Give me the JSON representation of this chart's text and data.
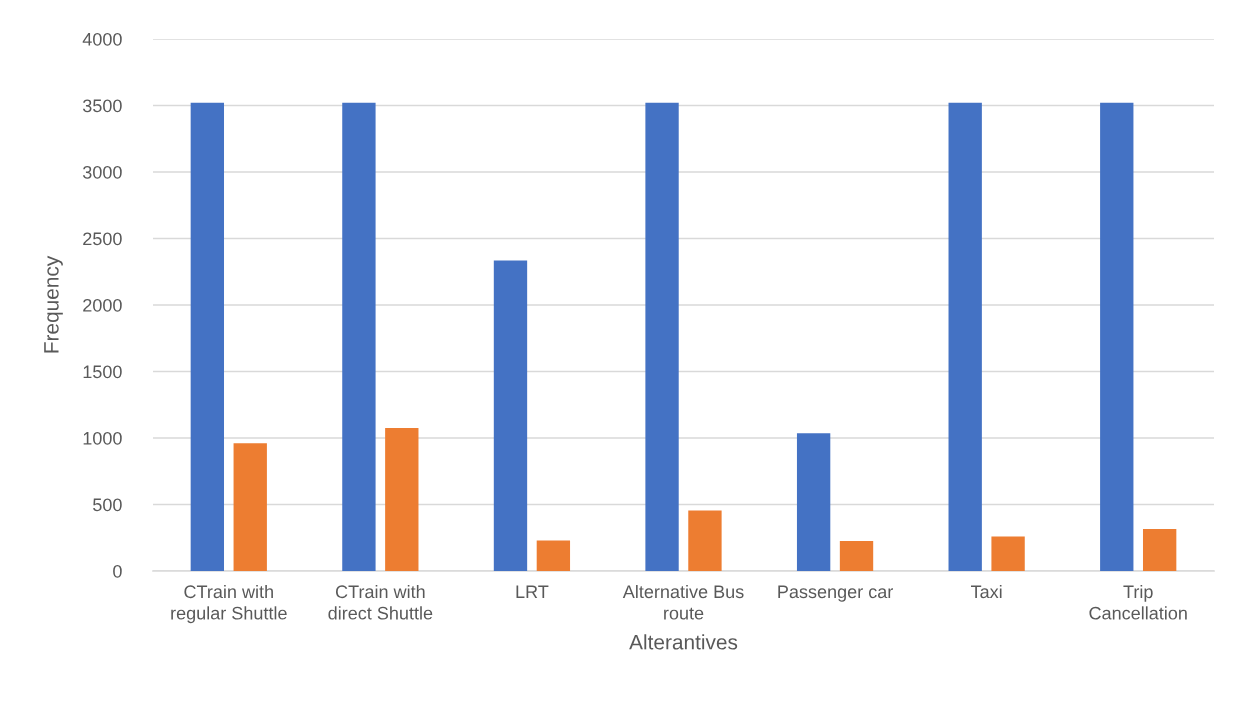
{
  "chart_data": {
    "type": "bar",
    "xlabel": "Alterantives",
    "ylabel": "Frequency",
    "categories": [
      "CTrain with regular Shuttle",
      "CTrain with direct Shuttle",
      "LRT",
      "Alternative Bus route",
      "Passenger car",
      "Taxi",
      "Trip Cancellation"
    ],
    "series": [
      {
        "color": "#4472c4",
        "values": [
          3520,
          3520,
          2335,
          3520,
          1035,
          3520,
          3520
        ]
      },
      {
        "color": "#ed7d31",
        "values": [
          960,
          1075,
          230,
          455,
          225,
          260,
          315
        ]
      }
    ],
    "ylim": [
      0,
      4000
    ],
    "yticks": [
      0,
      500,
      1000,
      1500,
      2000,
      2500,
      3000,
      3500,
      4000
    ],
    "grid": "y"
  }
}
